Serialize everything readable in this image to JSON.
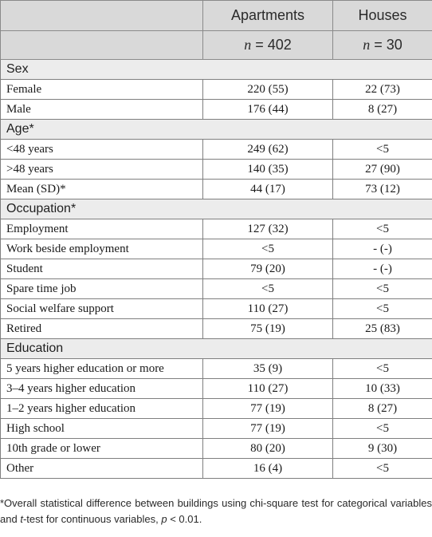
{
  "header": {
    "col1": "Apartments",
    "col2": "Houses",
    "n_symbol": "n",
    "n1": "= 402",
    "n2": "= 30"
  },
  "sections": [
    {
      "title": "Sex",
      "rows": [
        {
          "label": "Female",
          "apartments": "220 (55)",
          "houses": "22 (73)"
        },
        {
          "label": "Male",
          "apartments": "176 (44)",
          "houses": "8 (27)"
        }
      ]
    },
    {
      "title": "Age*",
      "rows": [
        {
          "label": "<48 years",
          "apartments": "249 (62)",
          "houses": "<5"
        },
        {
          "label": ">48 years",
          "apartments": "140 (35)",
          "houses": "27 (90)"
        },
        {
          "label": "Mean (SD)*",
          "apartments": "44 (17)",
          "houses": "73 (12)"
        }
      ]
    },
    {
      "title": "Occupation*",
      "rows": [
        {
          "label": "Employment",
          "apartments": "127 (32)",
          "houses": "<5"
        },
        {
          "label": "Work beside employment",
          "apartments": "<5",
          "houses": "- (-)"
        },
        {
          "label": "Student",
          "apartments": "79 (20)",
          "houses": "- (-)"
        },
        {
          "label": "Spare time job",
          "apartments": "<5",
          "houses": "<5"
        },
        {
          "label": "Social welfare support",
          "apartments": "110 (27)",
          "houses": "<5"
        },
        {
          "label": "Retired",
          "apartments": "75 (19)",
          "houses": "25 (83)"
        }
      ]
    },
    {
      "title": "Education",
      "rows": [
        {
          "label": "5 years higher education or more",
          "apartments": "35 (9)",
          "houses": "<5"
        },
        {
          "label": "3–4 years higher education",
          "apartments": "110 (27)",
          "houses": "10 (33)"
        },
        {
          "label": "1–2 years higher education",
          "apartments": "77 (19)",
          "houses": "8 (27)"
        },
        {
          "label": "High school",
          "apartments": "77 (19)",
          "houses": "<5"
        },
        {
          "label": "10th grade or lower",
          "apartments": "80 (20)",
          "houses": "9 (30)"
        },
        {
          "label": "Other",
          "apartments": "16 (4)",
          "houses": "<5"
        }
      ]
    }
  ],
  "footnote": {
    "part1": "*Overall statistical difference between buildings using chi-square test for categorical variables and ",
    "t_italic": "t",
    "part2": "-test for continuous variables, ",
    "p_italic": "p",
    "part3": " < 0.01."
  }
}
